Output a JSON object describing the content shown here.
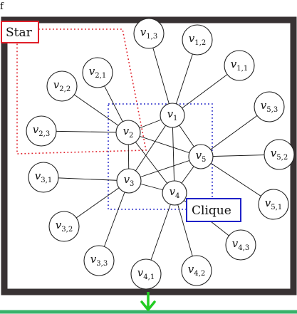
{
  "corner_label": "f",
  "labels": {
    "star": "Star",
    "clique": "Clique"
  },
  "colors": {
    "frame": "#383233",
    "star_outline": "#e0202a",
    "clique_outline": "#1f22c8",
    "arrow": "#22cc22",
    "bottom_bar": "#38b26a"
  },
  "icons": {
    "arrow": "down-arrow-icon"
  },
  "nodes": [
    {
      "id": "v1",
      "base": "v",
      "sub": "1"
    },
    {
      "id": "v2",
      "base": "v",
      "sub": "2"
    },
    {
      "id": "v3",
      "base": "v",
      "sub": "3"
    },
    {
      "id": "v4",
      "base": "v",
      "sub": "4"
    },
    {
      "id": "v5",
      "base": "v",
      "sub": "5"
    },
    {
      "id": "v1_1",
      "base": "v",
      "sub": "1,1"
    },
    {
      "id": "v1_2",
      "base": "v",
      "sub": "1,2"
    },
    {
      "id": "v1_3",
      "base": "v",
      "sub": "1,3"
    },
    {
      "id": "v2_1",
      "base": "v",
      "sub": "2,1"
    },
    {
      "id": "v2_2",
      "base": "v",
      "sub": "2,2"
    },
    {
      "id": "v2_3",
      "base": "v",
      "sub": "2,3"
    },
    {
      "id": "v3_1",
      "base": "v",
      "sub": "3,1"
    },
    {
      "id": "v3_2",
      "base": "v",
      "sub": "3,2"
    },
    {
      "id": "v3_3",
      "base": "v",
      "sub": "3,3"
    },
    {
      "id": "v4_1",
      "base": "v",
      "sub": "4,1"
    },
    {
      "id": "v4_2",
      "base": "v",
      "sub": "4,2"
    },
    {
      "id": "v4_3",
      "base": "v",
      "sub": "4,3"
    },
    {
      "id": "v5_1",
      "base": "v",
      "sub": "5,1"
    },
    {
      "id": "v5_2",
      "base": "v",
      "sub": "5,2"
    },
    {
      "id": "v5_3",
      "base": "v",
      "sub": "5,3"
    }
  ],
  "edges": [
    [
      "v1",
      "v2"
    ],
    [
      "v1",
      "v3"
    ],
    [
      "v1",
      "v4"
    ],
    [
      "v1",
      "v5"
    ],
    [
      "v2",
      "v3"
    ],
    [
      "v2",
      "v4"
    ],
    [
      "v2",
      "v5"
    ],
    [
      "v3",
      "v4"
    ],
    [
      "v3",
      "v5"
    ],
    [
      "v4",
      "v5"
    ],
    [
      "v1",
      "v1_1"
    ],
    [
      "v1",
      "v1_2"
    ],
    [
      "v1",
      "v1_3"
    ],
    [
      "v2",
      "v2_1"
    ],
    [
      "v2",
      "v2_2"
    ],
    [
      "v2",
      "v2_3"
    ],
    [
      "v3",
      "v3_1"
    ],
    [
      "v3",
      "v3_2"
    ],
    [
      "v3",
      "v3_3"
    ],
    [
      "v4",
      "v4_1"
    ],
    [
      "v4",
      "v4_2"
    ],
    [
      "v4",
      "v4_3"
    ],
    [
      "v5",
      "v5_1"
    ],
    [
      "v5",
      "v5_2"
    ],
    [
      "v5",
      "v5_3"
    ]
  ]
}
